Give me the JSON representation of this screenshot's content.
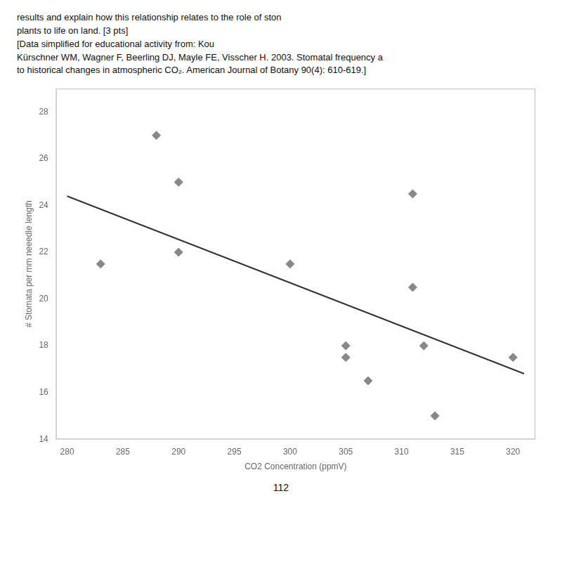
{
  "chart_data": {
    "type": "scatter",
    "xlabel": "CO2 Concentration (ppmV)",
    "ylabel": "# Stomata per mm neeedle length",
    "annotations": [
      "results and explain how this relationship relates to the role of ston",
      "plants to life on land. [3 pts]",
      "[Data simplified for educational activity from: Kou",
      "Kürschner WM, Wagner F, Beerling DJ, Mayle FE, Visscher H. 2003. Stomatal frequency a",
      "to historical changes in atmospheric CO₂. American Journal of Botany 90(4): 610-619.]",
      "112"
    ],
    "series": [
      {
        "type": "scatter",
        "color": "#888888",
        "marker": "diamond",
        "x": [
          283,
          288,
          290,
          290,
          300,
          305,
          305,
          307,
          311,
          311,
          312,
          313,
          320
        ],
        "values": [
          21.5,
          27.0,
          25.0,
          22.0,
          21.5,
          18.0,
          17.5,
          16.5,
          24.5,
          20.5,
          18.0,
          15.0,
          17.5
        ]
      },
      {
        "type": "line",
        "color": "#333333",
        "x": [
          280,
          321
        ],
        "values": [
          24.4,
          16.8
        ]
      }
    ],
    "xlim": [
      279,
      322
    ],
    "ylim": [
      14,
      29
    ],
    "xticks": [
      280,
      285,
      290,
      295,
      300,
      305,
      310,
      315,
      320
    ],
    "yticks": [
      14,
      16,
      18,
      20,
      22,
      24,
      26,
      28
    ],
    "grid": false
  }
}
